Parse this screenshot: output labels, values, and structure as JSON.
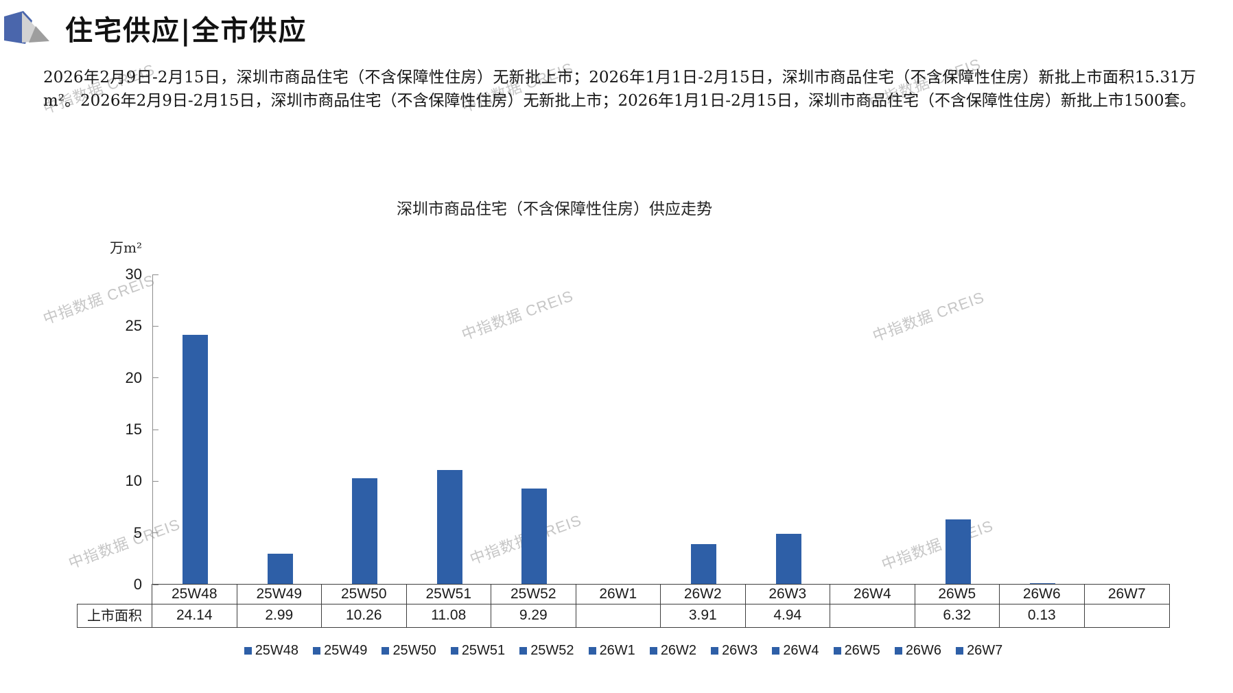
{
  "header": {
    "title": "住宅供应|全市供应"
  },
  "summary": "2026年2月9日-2月15日，深圳市商品住宅（不含保障性住房）无新批上市；2026年1月1日-2月15日，深圳市商品住宅（不含保障性住房）新批上市面积15.31万m²。2026年2月9日-2月15日，深圳市商品住宅（不含保障性住房）无新批上市；2026年1月1日-2月15日，深圳市商品住宅（不含保障性住房）新批上市1500套。",
  "watermark": {
    "text": "中指数据 CREIS",
    "color": "#c6c6c6"
  },
  "chart_data": {
    "type": "bar",
    "title": "深圳市商品住宅（不含保障性住房）供应走势",
    "unit_label": "万m²",
    "xlabel": "",
    "ylabel": "万m²",
    "categories": [
      "25W48",
      "25W49",
      "25W50",
      "25W51",
      "25W52",
      "26W1",
      "26W2",
      "26W3",
      "26W4",
      "26W5",
      "26W6",
      "26W7"
    ],
    "values": [
      24.14,
      2.99,
      10.26,
      11.08,
      9.29,
      null,
      3.91,
      4.94,
      null,
      6.32,
      0.13,
      null
    ],
    "ylim": [
      0,
      30
    ],
    "yticks": [
      30,
      25,
      20,
      15,
      10,
      5,
      0
    ],
    "grid": false,
    "legend_position": "bottom",
    "bar_color": "#2E5FA7",
    "table": {
      "row_label": "上市面积",
      "values": [
        "24.14",
        "2.99",
        "10.26",
        "11.08",
        "9.29",
        "",
        "3.91",
        "4.94",
        "",
        "6.32",
        "0.13",
        ""
      ]
    }
  },
  "colors": {
    "bar": "#2E5FA7",
    "axis": "#8c8c8c",
    "table_border": "#3d3d3d",
    "logo_blue": "#4a66ac",
    "logo_gray_light": "#d2d2d2",
    "logo_gray_dark": "#9e9e9e",
    "watermark": "#c6c6c6"
  }
}
